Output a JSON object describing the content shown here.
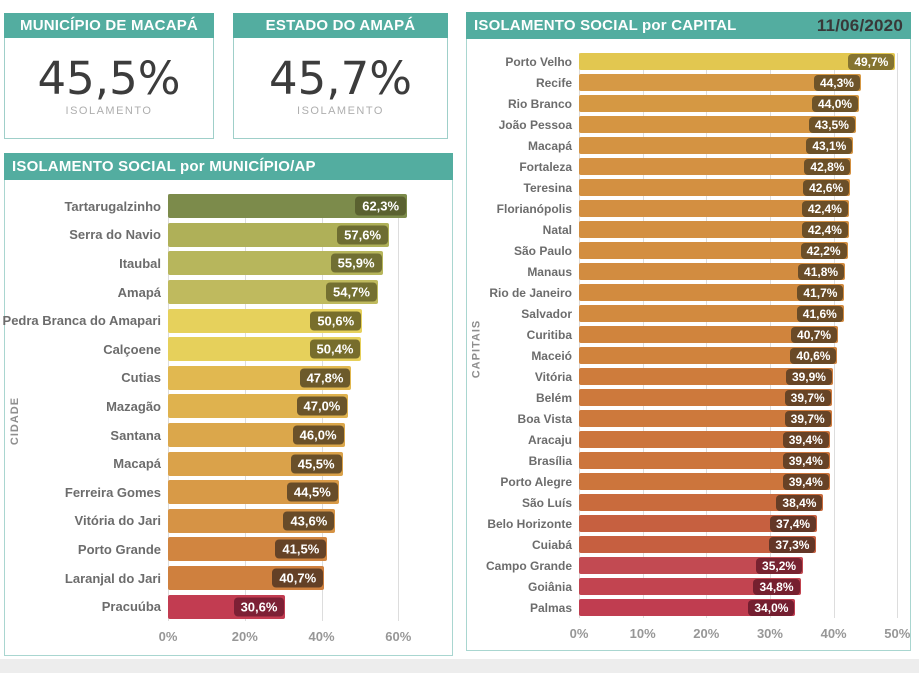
{
  "cards": [
    {
      "title": "MUNICÍPIO DE MACAPÁ",
      "value": "45,5%",
      "label": "ISOLAMENTO"
    },
    {
      "title": "ESTADO DO AMAPÁ",
      "value": "45,7%",
      "label": "ISOLAMENTO"
    }
  ],
  "colors": {
    "teal": "#53ADA0",
    "panel_border": "#A9D6D0",
    "gridline": "#DDDDDD",
    "bottom_strip": "#EDEDED",
    "header_text": "#FFFFFF",
    "date_text": "#383838",
    "big_number": "#3C3C3C",
    "card_sub": "#AEAEAE",
    "category_text": "#6C6C6C",
    "axis_text": "#979797"
  },
  "chart_data": [
    {
      "type": "bar",
      "orientation": "horizontal",
      "title": "ISOLAMENTO SOCIAL por MUNICÍPIO/AP",
      "ylabel": "CIDADE",
      "xlabel": "",
      "grid": true,
      "legend": false,
      "axis_max": 74,
      "xticks": [
        "0%",
        "20%",
        "40%",
        "60%"
      ],
      "xtick_values": [
        0,
        20,
        40,
        60
      ],
      "categories": [
        "Tartarugalzinho",
        "Serra do Navio",
        "Itaubal",
        "Amapá",
        "Pedra Branca do Amapari",
        "Calçoene",
        "Cutias",
        "Mazagão",
        "Santana",
        "Macapá",
        "Ferreira Gomes",
        "Vitória do Jari",
        "Porto Grande",
        "Laranjal do Jari",
        "Pracuúba"
      ],
      "values": [
        62.3,
        57.6,
        55.9,
        54.7,
        50.6,
        50.4,
        47.8,
        47.0,
        46.0,
        45.5,
        44.5,
        43.6,
        41.5,
        40.7,
        30.6
      ],
      "value_labels": [
        "62,3%",
        "57,6%",
        "55,9%",
        "54,7%",
        "50,6%",
        "50,4%",
        "47,8%",
        "47,0%",
        "46,0%",
        "45,5%",
        "44,5%",
        "43,6%",
        "41,5%",
        "40,7%",
        "30,6%"
      ],
      "bar_colors": [
        "#7C8B4B",
        "#AFB058",
        "#B7B65C",
        "#BFBA5E",
        "#E6D15C",
        "#E6D05B",
        "#E1B850",
        "#DFB24E",
        "#DBA74B",
        "#DAA24A",
        "#D89A47",
        "#D69345",
        "#D18540",
        "#CF803E",
        "#C23C51"
      ],
      "badge_colors": [
        "#5A6130",
        "#6E6D32",
        "#716F33",
        "#747031",
        "#786E2C",
        "#776D2C",
        "#6C5A2B",
        "#6B552A",
        "#6A512A",
        "#69502A",
        "#684D29",
        "#674B29",
        "#654327",
        "#644026",
        "#7D2035"
      ]
    },
    {
      "type": "bar",
      "orientation": "horizontal",
      "title": "ISOLAMENTO SOCIAL por CAPITAL",
      "date": "11/06/2020",
      "ylabel": "CAPITAIS",
      "xlabel": "",
      "grid": true,
      "legend": false,
      "axis_max": 52,
      "xticks": [
        "0%",
        "10%",
        "20%",
        "30%",
        "40%",
        "50%"
      ],
      "xtick_values": [
        0,
        10,
        20,
        30,
        40,
        50
      ],
      "categories": [
        "Porto Velho",
        "Recife",
        "Rio Branco",
        "João Pessoa",
        "Macapá",
        "Fortaleza",
        "Teresina",
        "Florianópolis",
        "Natal",
        "São Paulo",
        "Manaus",
        "Rio de Janeiro",
        "Salvador",
        "Curitiba",
        "Maceió",
        "Vitória",
        "Belém",
        "Boa Vista",
        "Aracaju",
        "Brasília",
        "Porto Alegre",
        "São Luís",
        "Belo Horizonte",
        "Cuiabá",
        "Campo Grande",
        "Goiânia",
        "Palmas"
      ],
      "values": [
        49.7,
        44.3,
        44.0,
        43.5,
        43.1,
        42.8,
        42.6,
        42.4,
        42.4,
        42.2,
        41.8,
        41.7,
        41.6,
        40.7,
        40.6,
        39.9,
        39.7,
        39.7,
        39.4,
        39.4,
        39.4,
        38.4,
        37.4,
        37.3,
        35.2,
        34.8,
        34.0
      ],
      "value_labels": [
        "49,7%",
        "44,3%",
        "44,0%",
        "43,5%",
        "43,1%",
        "42,8%",
        "42,6%",
        "42,4%",
        "42,4%",
        "42,2%",
        "41,8%",
        "41,7%",
        "41,6%",
        "40,7%",
        "40,6%",
        "39,9%",
        "39,7%",
        "39,7%",
        "39,4%",
        "39,4%",
        "39,4%",
        "38,4%",
        "37,4%",
        "37,3%",
        "35,2%",
        "34,8%",
        "34,0%"
      ],
      "bar_colors": [
        "#E2C750",
        "#D69945",
        "#D59843",
        "#D59542",
        "#D49342",
        "#D49142",
        "#D39041",
        "#D38F41",
        "#D38F41",
        "#D38E40",
        "#D28C40",
        "#D28B3F",
        "#D28A3F",
        "#D0843D",
        "#D0833D",
        "#CE7C3C",
        "#CD793C",
        "#CD793C",
        "#CC753C",
        "#CC753C",
        "#CC753C",
        "#C96B3D",
        "#C66040",
        "#C65F40",
        "#C24A52",
        "#C24450",
        "#C03D50"
      ],
      "badge_colors": [
        "#857430",
        "#6E5429",
        "#6D5329",
        "#6D5228",
        "#6C5128",
        "#6C5028",
        "#6B4F28",
        "#6B4F28",
        "#6B4F28",
        "#6B4E28",
        "#6A4D28",
        "#6A4D27",
        "#6A4C27",
        "#694927",
        "#694927",
        "#684526",
        "#674426",
        "#674426",
        "#674226",
        "#674226",
        "#674226",
        "#653D26",
        "#633727",
        "#633627",
        "#772230",
        "#76202F",
        "#741E30"
      ]
    }
  ]
}
